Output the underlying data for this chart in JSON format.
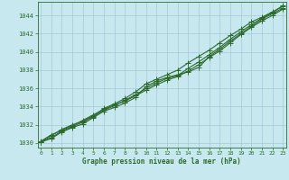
{
  "title": "Graphe pression niveau de la mer (hPa)",
  "xlabel_hours": [
    0,
    1,
    2,
    3,
    4,
    5,
    6,
    7,
    8,
    9,
    10,
    11,
    12,
    13,
    14,
    15,
    16,
    17,
    18,
    19,
    20,
    21,
    22,
    23
  ],
  "line1": [
    1030.1,
    1030.5,
    1031.2,
    1031.7,
    1032.1,
    1032.8,
    1033.5,
    1033.9,
    1034.4,
    1035.0,
    1036.2,
    1036.8,
    1037.2,
    1037.5,
    1037.8,
    1038.3,
    1039.5,
    1040.3,
    1041.2,
    1042.0,
    1042.8,
    1043.6,
    1044.2,
    1044.8
  ],
  "line2": [
    1030.1,
    1030.8,
    1031.5,
    1032.0,
    1032.4,
    1033.0,
    1033.8,
    1034.3,
    1034.9,
    1035.6,
    1036.5,
    1037.0,
    1037.5,
    1038.0,
    1038.8,
    1039.5,
    1040.2,
    1041.0,
    1041.8,
    1042.5,
    1043.3,
    1043.8,
    1044.4,
    1045.0
  ],
  "line3": [
    1030.1,
    1030.6,
    1031.3,
    1031.8,
    1032.3,
    1032.9,
    1033.6,
    1034.1,
    1034.7,
    1035.3,
    1036.0,
    1036.6,
    1037.1,
    1037.4,
    1038.2,
    1038.9,
    1039.7,
    1040.5,
    1041.4,
    1042.2,
    1043.0,
    1043.7,
    1044.3,
    1045.1
  ],
  "line4": [
    1030.2,
    1030.9,
    1031.4,
    1031.9,
    1032.5,
    1033.1,
    1033.7,
    1034.2,
    1034.6,
    1035.2,
    1035.8,
    1036.4,
    1036.9,
    1037.3,
    1037.9,
    1038.6,
    1039.4,
    1040.1,
    1041.0,
    1041.9,
    1042.7,
    1043.4,
    1044.0,
    1044.7
  ],
  "line_color": "#2d6a2d",
  "bg_color": "#c8e8f0",
  "grid_color": "#a8c8d8",
  "tick_label_color": "#2d6a2d",
  "ylabel_min": 1030,
  "ylabel_max": 1044,
  "ylabel_step": 2,
  "marker": "+",
  "marker_size": 4,
  "linewidth": 0.8
}
